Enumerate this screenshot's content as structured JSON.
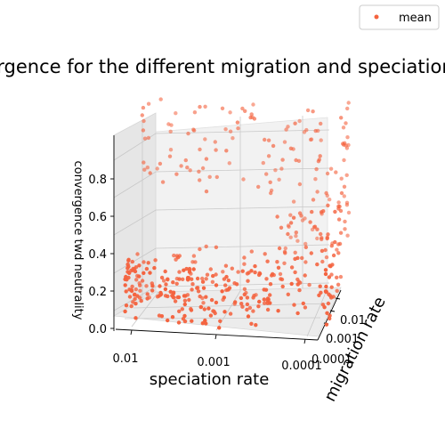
{
  "chart_data": {
    "type": "scatter",
    "projection": "3d",
    "title": "Convergence for the different migration and speciation rates",
    "xlabel": "speciation rate",
    "ylabel": "migration rate",
    "zlabel": "convergence twd neutrality",
    "x_ticks": [
      "0.01",
      "0.001",
      "0.0001"
    ],
    "y_ticks": [
      "0.01",
      "0.001",
      "0.0001"
    ],
    "z_ticks": [
      "0.0",
      "0.2",
      "0.4",
      "0.6",
      "0.8"
    ],
    "zlim": [
      0,
      0.95
    ],
    "series": [
      {
        "name": "mean",
        "color": "#f4633f",
        "clusters": [
          {
            "speciation": "0.01",
            "migration": "0.0001",
            "convergence_range": [
              0.0,
              0.3
            ],
            "count": 85
          },
          {
            "speciation": "0.001",
            "migration": "0.0001",
            "convergence_range": [
              0.0,
              0.3
            ],
            "count": 75
          },
          {
            "speciation": "0.0001",
            "migration": "0.0001",
            "convergence_range": [
              0.05,
              0.35
            ],
            "count": 45
          },
          {
            "speciation": "0.01",
            "migration": "0.001",
            "convergence_range": [
              0.0,
              0.25
            ],
            "count": 35
          },
          {
            "speciation": "0.001",
            "migration": "0.001",
            "convergence_range": [
              0.0,
              0.3
            ],
            "count": 40
          },
          {
            "speciation": "0.0001",
            "migration": "0.001",
            "convergence_range": [
              0.1,
              0.55
            ],
            "count": 55
          },
          {
            "speciation": "0.01",
            "migration": "0.01",
            "convergence_range": [
              0.55,
              0.95
            ],
            "count": 35
          },
          {
            "speciation": "0.001",
            "migration": "0.01",
            "convergence_range": [
              0.5,
              0.95
            ],
            "count": 40
          },
          {
            "speciation": "0.0001",
            "migration": "0.01",
            "convergence_range": [
              0.2,
              0.95
            ],
            "count": 80
          }
        ]
      }
    ],
    "legend": {
      "entries": [
        "mean"
      ],
      "position": "top-right"
    }
  }
}
